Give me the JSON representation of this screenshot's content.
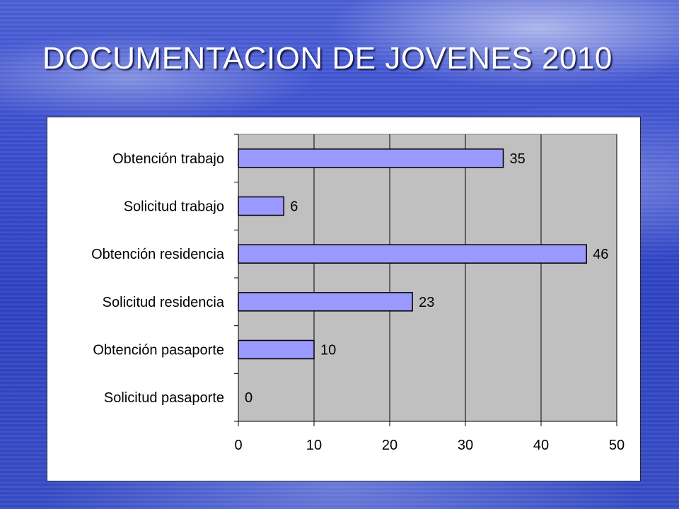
{
  "slide": {
    "title": "DOCUMENTACION DE JOVENES 2010"
  },
  "colors": {
    "bar_fill": "#9999ff",
    "plot_bg": "#c0c0c0",
    "frame_bg": "#ffffff",
    "gridline": "#000000"
  },
  "chart_data": {
    "type": "bar",
    "orientation": "horizontal",
    "title": "",
    "xlabel": "",
    "ylabel": "",
    "categories": [
      "Obtención trabajo",
      "Solicitud trabajo",
      "Obtención residencia",
      "Solicitud residencia",
      "Obtención pasaporte",
      "Solicitud pasaporte"
    ],
    "values": [
      35,
      6,
      46,
      23,
      10,
      0
    ],
    "data_labels": [
      "35",
      "6",
      "46",
      "23",
      "10",
      "0"
    ],
    "xlim": [
      0,
      50
    ],
    "x_ticks": [
      0,
      10,
      20,
      30,
      40,
      50
    ],
    "grid": true,
    "legend": "none"
  }
}
